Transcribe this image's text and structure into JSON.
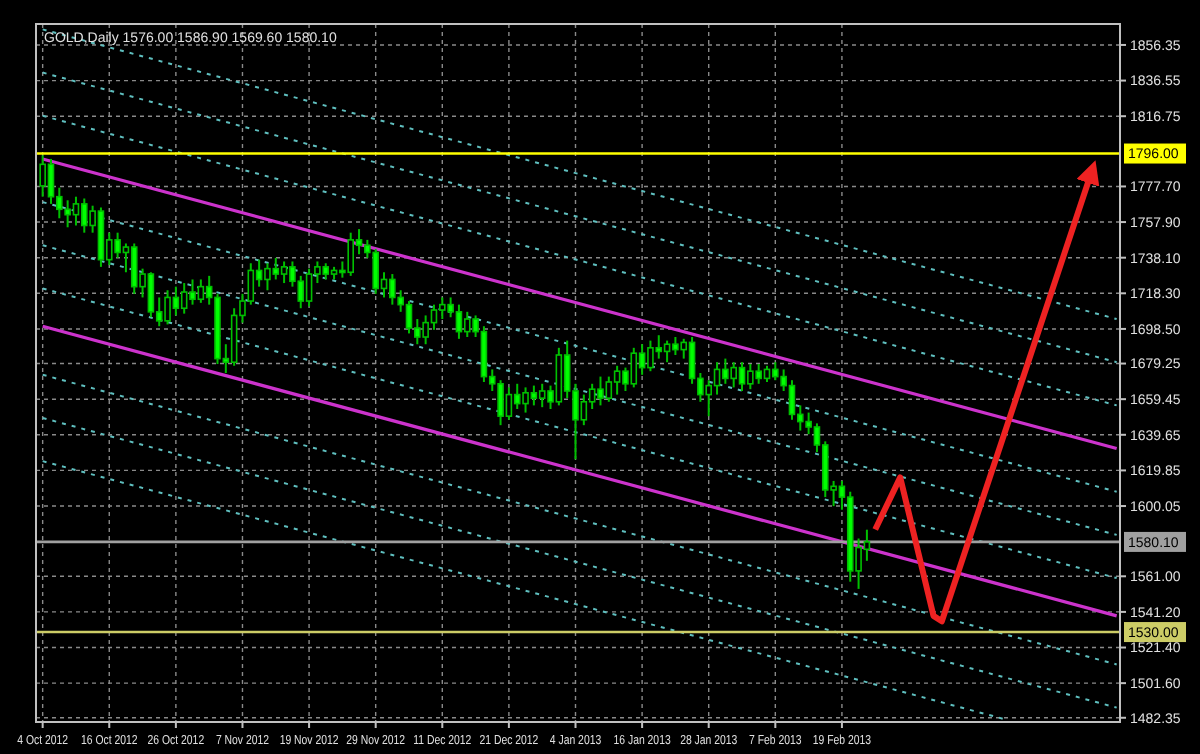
{
  "chart_data": {
    "type": "candlestick",
    "title": "GOLD,Daily  1576.00 1586.90 1569.60 1580.10",
    "color": "#00c000",
    "categories": [
      "4 Oct 2012",
      null,
      null,
      null,
      null,
      null,
      null,
      null,
      "16 Oct 2012",
      null,
      null,
      null,
      null,
      null,
      null,
      null,
      "26 Oct 2012",
      null,
      null,
      null,
      null,
      null,
      null,
      null,
      "7 Nov 2012",
      null,
      null,
      null,
      null,
      null,
      null,
      null,
      "19 Nov 2012",
      null,
      null,
      null,
      null,
      null,
      null,
      null,
      "29 Nov 2012",
      null,
      null,
      null,
      null,
      null,
      null,
      null,
      "11 Dec 2012",
      null,
      null,
      null,
      null,
      null,
      null,
      null,
      "21 Dec 2012",
      null,
      null,
      null,
      null,
      null,
      null,
      null,
      "4 Jan 2013",
      null,
      null,
      null,
      null,
      null,
      null,
      null,
      "16 Jan 2013",
      null,
      null,
      null,
      null,
      null,
      null,
      null,
      "28 Jan 2013",
      null,
      null,
      null,
      null,
      null,
      null,
      null,
      "7 Feb 2013",
      null,
      null,
      null,
      null,
      null,
      null,
      null,
      "19 Feb 2013",
      null,
      null,
      null,
      null,
      null,
      null,
      null,
      null,
      null,
      null,
      null,
      null,
      null,
      null,
      null,
      null,
      null,
      null,
      null,
      null,
      null,
      null,
      null,
      null,
      null,
      null,
      null,
      null,
      null,
      null,
      null,
      null,
      null
    ],
    "ohlc": [
      [
        1778,
        1795,
        1772,
        1790
      ],
      [
        1790,
        1793,
        1768,
        1772
      ],
      [
        1772,
        1777,
        1760,
        1765
      ],
      [
        1765,
        1770,
        1755,
        1762
      ],
      [
        1762,
        1772,
        1756,
        1768
      ],
      [
        1768,
        1771,
        1752,
        1756
      ],
      [
        1756,
        1767,
        1752,
        1764
      ],
      [
        1764,
        1766,
        1733,
        1737
      ],
      [
        1737,
        1752,
        1734,
        1748
      ],
      [
        1748,
        1752,
        1738,
        1741
      ],
      [
        1741,
        1746,
        1730,
        1744
      ],
      [
        1744,
        1746,
        1718,
        1722
      ],
      [
        1722,
        1732,
        1716,
        1729
      ],
      [
        1729,
        1730,
        1705,
        1708
      ],
      [
        1708,
        1716,
        1700,
        1703
      ],
      [
        1703,
        1720,
        1701,
        1716
      ],
      [
        1716,
        1722,
        1706,
        1710
      ],
      [
        1710,
        1724,
        1707,
        1719
      ],
      [
        1719,
        1726,
        1712,
        1715
      ],
      [
        1715,
        1726,
        1713,
        1722
      ],
      [
        1722,
        1728,
        1712,
        1716
      ],
      [
        1716,
        1718,
        1679,
        1682
      ],
      [
        1682,
        1690,
        1674,
        1680
      ],
      [
        1680,
        1710,
        1678,
        1706
      ],
      [
        1706,
        1718,
        1702,
        1714
      ],
      [
        1714,
        1735,
        1712,
        1731
      ],
      [
        1731,
        1737,
        1722,
        1726
      ],
      [
        1726,
        1735,
        1720,
        1732
      ],
      [
        1732,
        1738,
        1726,
        1729
      ],
      [
        1729,
        1736,
        1724,
        1733
      ],
      [
        1733,
        1736,
        1722,
        1725
      ],
      [
        1725,
        1728,
        1710,
        1714
      ],
      [
        1714,
        1732,
        1711,
        1729
      ],
      [
        1729,
        1736,
        1724,
        1733
      ],
      [
        1733,
        1735,
        1726,
        1729
      ],
      [
        1729,
        1733,
        1726,
        1731
      ],
      [
        1731,
        1736,
        1727,
        1730
      ],
      [
        1730,
        1752,
        1728,
        1748
      ],
      [
        1748,
        1754,
        1740,
        1745
      ],
      [
        1745,
        1748,
        1738,
        1741
      ],
      [
        1741,
        1743,
        1718,
        1721
      ],
      [
        1721,
        1730,
        1716,
        1726
      ],
      [
        1726,
        1729,
        1712,
        1716
      ],
      [
        1716,
        1720,
        1708,
        1712
      ],
      [
        1712,
        1714,
        1696,
        1699
      ],
      [
        1699,
        1704,
        1690,
        1694
      ],
      [
        1694,
        1706,
        1690,
        1702
      ],
      [
        1702,
        1712,
        1698,
        1709
      ],
      [
        1709,
        1716,
        1704,
        1712
      ],
      [
        1712,
        1716,
        1705,
        1708
      ],
      [
        1708,
        1712,
        1693,
        1697
      ],
      [
        1697,
        1708,
        1694,
        1704
      ],
      [
        1704,
        1706,
        1694,
        1697
      ],
      [
        1697,
        1700,
        1669,
        1672
      ],
      [
        1672,
        1676,
        1664,
        1668
      ],
      [
        1668,
        1670,
        1645,
        1650
      ],
      [
        1650,
        1666,
        1648,
        1662
      ],
      [
        1662,
        1668,
        1654,
        1657
      ],
      [
        1657,
        1666,
        1652,
        1663
      ],
      [
        1663,
        1667,
        1656,
        1660
      ],
      [
        1660,
        1668,
        1655,
        1664
      ],
      [
        1664,
        1667,
        1654,
        1658
      ],
      [
        1658,
        1688,
        1656,
        1684
      ],
      [
        1684,
        1692,
        1660,
        1664
      ],
      [
        1664,
        1668,
        1626,
        1648
      ],
      [
        1648,
        1662,
        1645,
        1658
      ],
      [
        1658,
        1668,
        1654,
        1665
      ],
      [
        1665,
        1672,
        1656,
        1660
      ],
      [
        1660,
        1672,
        1658,
        1669
      ],
      [
        1669,
        1678,
        1662,
        1675
      ],
      [
        1675,
        1677,
        1664,
        1668
      ],
      [
        1668,
        1688,
        1666,
        1685
      ],
      [
        1685,
        1690,
        1673,
        1677
      ],
      [
        1677,
        1692,
        1675,
        1688
      ],
      [
        1688,
        1695,
        1682,
        1686
      ],
      [
        1686,
        1692,
        1680,
        1690
      ],
      [
        1690,
        1694,
        1684,
        1687
      ],
      [
        1687,
        1693,
        1682,
        1691
      ],
      [
        1691,
        1694,
        1668,
        1671
      ],
      [
        1671,
        1674,
        1658,
        1662
      ],
      [
        1662,
        1670,
        1650,
        1667
      ],
      [
        1667,
        1680,
        1662,
        1676
      ],
      [
        1676,
        1682,
        1668,
        1671
      ],
      [
        1671,
        1680,
        1666,
        1677
      ],
      [
        1677,
        1680,
        1664,
        1668
      ],
      [
        1668,
        1679,
        1665,
        1675
      ],
      [
        1675,
        1679,
        1668,
        1671
      ],
      [
        1671,
        1678,
        1669,
        1676
      ],
      [
        1676,
        1680,
        1670,
        1672
      ],
      [
        1672,
        1676,
        1664,
        1667
      ],
      [
        1667,
        1670,
        1648,
        1651
      ],
      [
        1651,
        1656,
        1642,
        1647
      ],
      [
        1647,
        1652,
        1640,
        1644
      ],
      [
        1644,
        1646,
        1630,
        1634
      ],
      [
        1634,
        1636,
        1605,
        1609
      ],
      [
        1609,
        1614,
        1600,
        1611
      ],
      [
        1611,
        1614,
        1598,
        1605
      ],
      [
        1605,
        1608,
        1558,
        1564
      ],
      [
        1564,
        1582,
        1554,
        1577
      ],
      [
        1576,
        1586.9,
        1569.6,
        1580.1
      ],
      null,
      null,
      null,
      null,
      null,
      null,
      null,
      null,
      null,
      null,
      null,
      null,
      null,
      null,
      null,
      null,
      null,
      null,
      null,
      null,
      null,
      null,
      null,
      null,
      null,
      null,
      null,
      null,
      null,
      null
    ],
    "series": [
      {
        "type": "line",
        "color": "#cc33cc",
        "line_style": "solid",
        "values": [
          1793,
          null,
          null,
          null,
          null,
          null,
          null,
          null,
          null,
          null,
          null,
          null,
          null,
          null,
          null,
          null,
          null,
          null,
          null,
          null,
          null,
          null,
          null,
          null,
          null,
          null,
          null,
          null,
          null,
          null,
          null,
          null,
          null,
          null,
          null,
          null,
          null,
          null,
          null,
          null,
          null,
          null,
          null,
          null,
          null,
          null,
          null,
          null,
          null,
          null,
          null,
          null,
          null,
          null,
          null,
          null,
          null,
          null,
          null,
          null,
          null,
          null,
          null,
          null,
          null,
          null,
          null,
          null,
          null,
          null,
          null,
          null,
          null,
          null,
          null,
          null,
          null,
          null,
          null,
          null,
          null,
          null,
          null,
          null,
          null,
          null,
          null,
          null,
          null,
          null,
          null,
          null,
          null,
          null,
          null,
          null,
          null,
          null,
          null,
          null,
          null,
          null,
          null,
          null,
          null,
          null,
          null,
          null,
          null,
          null,
          null,
          null,
          null,
          null,
          null,
          null,
          null,
          null,
          null,
          null,
          null,
          null,
          null,
          null,
          null,
          null,
          null,
          null,
          null,
          1632
        ]
      },
      {
        "type": "line",
        "color": "#cc33cc",
        "line_style": "solid",
        "values": [
          1700,
          null,
          null,
          null,
          null,
          null,
          null,
          null,
          null,
          null,
          null,
          null,
          null,
          null,
          null,
          null,
          null,
          null,
          null,
          null,
          null,
          null,
          null,
          null,
          null,
          null,
          null,
          null,
          null,
          null,
          null,
          null,
          null,
          null,
          null,
          null,
          null,
          null,
          null,
          null,
          null,
          null,
          null,
          null,
          null,
          null,
          null,
          null,
          null,
          null,
          null,
          null,
          null,
          null,
          null,
          null,
          null,
          null,
          null,
          null,
          null,
          null,
          null,
          null,
          null,
          null,
          null,
          null,
          null,
          null,
          null,
          null,
          null,
          null,
          null,
          null,
          null,
          null,
          null,
          null,
          null,
          null,
          null,
          null,
          null,
          null,
          null,
          null,
          null,
          null,
          null,
          null,
          null,
          null,
          null,
          null,
          null,
          null,
          null,
          null,
          null,
          null,
          null,
          null,
          null,
          null,
          null,
          null,
          null,
          null,
          null,
          null,
          null,
          null,
          null,
          null,
          null,
          null,
          null,
          null,
          null,
          null,
          null,
          null,
          null,
          null,
          null,
          null,
          null,
          1539
        ]
      },
      {
        "type": "line",
        "color": "#5fbfbf",
        "line_style": "dotted",
        "values": [
          1625,
          null,
          null,
          null,
          null,
          null,
          null,
          null,
          null,
          null,
          null,
          null,
          null,
          null,
          null,
          null,
          null,
          null,
          null,
          null,
          null,
          null,
          null,
          null,
          null,
          null,
          null,
          null,
          null,
          null,
          null,
          null,
          null,
          null,
          null,
          null,
          null,
          null,
          null,
          null,
          null,
          null,
          null,
          null,
          null,
          null,
          null,
          null,
          null,
          null,
          null,
          null,
          null,
          null,
          null,
          null,
          null,
          null,
          null,
          null,
          null,
          null,
          null,
          null,
          null,
          null,
          null,
          null,
          null,
          null,
          null,
          null,
          null,
          null,
          null,
          null,
          null,
          null,
          null,
          null,
          null,
          null,
          null,
          null,
          null,
          null,
          null,
          null,
          null,
          null,
          null,
          null,
          null,
          null,
          null,
          null,
          null,
          null,
          null,
          null,
          null,
          null,
          null,
          null,
          null,
          null,
          null,
          null,
          null,
          null,
          null,
          null,
          null,
          null,
          null,
          null,
          1481,
          null,
          null,
          null,
          null,
          null,
          null,
          null,
          null,
          null,
          null,
          null,
          null,
          null
        ]
      },
      {
        "type": "line",
        "color": "#5fbfbf",
        "line_style": "dotted",
        "values": [
          1649,
          null,
          null,
          null,
          null,
          null,
          null,
          null,
          null,
          null,
          null,
          null,
          null,
          null,
          null,
          null,
          null,
          null,
          null,
          null,
          null,
          null,
          null,
          null,
          null,
          null,
          null,
          null,
          null,
          null,
          null,
          null,
          null,
          null,
          null,
          null,
          null,
          null,
          null,
          null,
          null,
          null,
          null,
          null,
          null,
          null,
          null,
          null,
          null,
          null,
          null,
          null,
          null,
          null,
          null,
          null,
          null,
          null,
          null,
          null,
          null,
          null,
          null,
          null,
          null,
          null,
          null,
          null,
          null,
          null,
          null,
          null,
          null,
          null,
          null,
          null,
          null,
          null,
          null,
          null,
          null,
          null,
          null,
          null,
          null,
          null,
          null,
          null,
          null,
          null,
          null,
          null,
          null,
          null,
          null,
          null,
          null,
          null,
          null,
          null,
          null,
          null,
          null,
          null,
          null,
          null,
          null,
          null,
          null,
          null,
          null,
          null,
          null,
          null,
          null,
          null,
          null,
          null,
          null,
          null,
          null,
          null,
          null,
          null,
          null,
          null,
          null,
          null,
          null,
          1488
        ]
      },
      {
        "type": "line",
        "color": "#5fbfbf",
        "line_style": "dotted",
        "values": [
          1673,
          null,
          null,
          null,
          null,
          null,
          null,
          null,
          null,
          null,
          null,
          null,
          null,
          null,
          null,
          null,
          null,
          null,
          null,
          null,
          null,
          null,
          null,
          null,
          null,
          null,
          null,
          null,
          null,
          null,
          null,
          null,
          null,
          null,
          null,
          null,
          null,
          null,
          null,
          null,
          null,
          null,
          null,
          null,
          null,
          null,
          null,
          null,
          null,
          null,
          null,
          null,
          null,
          null,
          null,
          null,
          null,
          null,
          null,
          null,
          null,
          null,
          null,
          null,
          null,
          null,
          null,
          null,
          null,
          null,
          null,
          null,
          null,
          null,
          null,
          null,
          null,
          null,
          null,
          null,
          null,
          null,
          null,
          null,
          null,
          null,
          null,
          null,
          null,
          null,
          null,
          null,
          null,
          null,
          null,
          null,
          null,
          null,
          null,
          null,
          null,
          null,
          null,
          null,
          null,
          null,
          null,
          null,
          null,
          null,
          null,
          null,
          null,
          null,
          null,
          null,
          null,
          null,
          null,
          null,
          null,
          null,
          null,
          null,
          null,
          null,
          null,
          null,
          null,
          1512
        ]
      },
      {
        "type": "line",
        "color": "#5fbfbf",
        "line_style": "dotted",
        "values": [
          1721,
          null,
          null,
          null,
          null,
          null,
          null,
          null,
          null,
          null,
          null,
          null,
          null,
          null,
          null,
          null,
          null,
          null,
          null,
          null,
          null,
          null,
          null,
          null,
          null,
          null,
          null,
          null,
          null,
          null,
          null,
          null,
          null,
          null,
          null,
          null,
          null,
          null,
          null,
          null,
          null,
          null,
          null,
          null,
          null,
          null,
          null,
          null,
          null,
          null,
          null,
          null,
          null,
          null,
          null,
          null,
          null,
          null,
          null,
          null,
          null,
          null,
          null,
          null,
          null,
          null,
          null,
          null,
          null,
          null,
          null,
          null,
          null,
          null,
          null,
          null,
          null,
          null,
          null,
          null,
          null,
          null,
          null,
          null,
          null,
          null,
          null,
          null,
          null,
          null,
          null,
          null,
          null,
          null,
          null,
          null,
          null,
          null,
          null,
          null,
          null,
          null,
          null,
          null,
          null,
          null,
          null,
          null,
          null,
          null,
          null,
          null,
          null,
          null,
          null,
          null,
          null,
          null,
          null,
          null,
          null,
          null,
          null,
          null,
          null,
          null,
          null,
          null,
          null,
          1560
        ]
      },
      {
        "type": "line",
        "color": "#5fbfbf",
        "line_style": "dotted",
        "values": [
          1745,
          null,
          null,
          null,
          null,
          null,
          null,
          null,
          null,
          null,
          null,
          null,
          null,
          null,
          null,
          null,
          null,
          null,
          null,
          null,
          null,
          null,
          null,
          null,
          null,
          null,
          null,
          null,
          null,
          null,
          null,
          null,
          null,
          null,
          null,
          null,
          null,
          null,
          null,
          null,
          null,
          null,
          null,
          null,
          null,
          null,
          null,
          null,
          null,
          null,
          null,
          null,
          null,
          null,
          null,
          null,
          null,
          null,
          null,
          null,
          null,
          null,
          null,
          null,
          null,
          null,
          null,
          null,
          null,
          null,
          null,
          null,
          null,
          null,
          null,
          null,
          null,
          null,
          null,
          null,
          null,
          null,
          null,
          null,
          null,
          null,
          null,
          null,
          null,
          null,
          null,
          null,
          null,
          null,
          null,
          null,
          null,
          null,
          null,
          null,
          null,
          null,
          null,
          null,
          null,
          null,
          null,
          null,
          null,
          null,
          null,
          null,
          null,
          null,
          null,
          null,
          null,
          null,
          null,
          null,
          null,
          null,
          null,
          null,
          null,
          null,
          null,
          null,
          null,
          1584
        ]
      },
      {
        "type": "line",
        "color": "#5fbfbf",
        "line_style": "dotted",
        "values": [
          1769,
          null,
          null,
          null,
          null,
          null,
          null,
          null,
          null,
          null,
          null,
          null,
          null,
          null,
          null,
          null,
          null,
          null,
          null,
          null,
          null,
          null,
          null,
          null,
          null,
          null,
          null,
          null,
          null,
          null,
          null,
          null,
          null,
          null,
          null,
          null,
          null,
          null,
          null,
          null,
          null,
          null,
          null,
          null,
          null,
          null,
          null,
          null,
          null,
          null,
          null,
          null,
          null,
          null,
          null,
          null,
          null,
          null,
          null,
          null,
          null,
          null,
          null,
          null,
          null,
          null,
          null,
          null,
          null,
          null,
          null,
          null,
          null,
          null,
          null,
          null,
          null,
          null,
          null,
          null,
          null,
          null,
          null,
          null,
          null,
          null,
          null,
          null,
          null,
          null,
          null,
          null,
          null,
          null,
          null,
          null,
          null,
          null,
          null,
          null,
          null,
          null,
          null,
          null,
          null,
          null,
          null,
          null,
          null,
          null,
          null,
          null,
          null,
          null,
          null,
          null,
          null,
          null,
          null,
          null,
          null,
          null,
          null,
          null,
          null,
          null,
          null,
          null,
          null,
          1608
        ]
      },
      {
        "type": "line",
        "color": "#5fbfbf",
        "line_style": "dotted",
        "values": [
          1817,
          null,
          null,
          null,
          null,
          null,
          null,
          null,
          null,
          null,
          null,
          null,
          null,
          null,
          null,
          null,
          null,
          null,
          null,
          null,
          null,
          null,
          null,
          null,
          null,
          null,
          null,
          null,
          null,
          null,
          null,
          null,
          null,
          null,
          null,
          null,
          null,
          null,
          null,
          null,
          null,
          null,
          null,
          null,
          null,
          null,
          null,
          null,
          null,
          null,
          null,
          null,
          null,
          null,
          null,
          null,
          null,
          null,
          null,
          null,
          null,
          null,
          null,
          null,
          null,
          null,
          null,
          null,
          null,
          null,
          null,
          null,
          null,
          null,
          null,
          null,
          null,
          null,
          null,
          null,
          null,
          null,
          null,
          null,
          null,
          null,
          null,
          null,
          null,
          null,
          null,
          null,
          null,
          null,
          null,
          null,
          null,
          null,
          null,
          null,
          null,
          null,
          null,
          null,
          null,
          null,
          null,
          null,
          null,
          null,
          null,
          null,
          null,
          null,
          null,
          null,
          null,
          null,
          null,
          null,
          null,
          null,
          null,
          null,
          null,
          null,
          null,
          null,
          null,
          1656
        ]
      },
      {
        "type": "line",
        "color": "#5fbfbf",
        "line_style": "dotted",
        "values": [
          1841,
          null,
          null,
          null,
          null,
          null,
          null,
          null,
          null,
          null,
          null,
          null,
          null,
          null,
          null,
          null,
          null,
          null,
          null,
          null,
          null,
          null,
          null,
          null,
          null,
          null,
          null,
          null,
          null,
          null,
          null,
          null,
          null,
          null,
          null,
          null,
          null,
          null,
          null,
          null,
          null,
          null,
          null,
          null,
          null,
          null,
          null,
          null,
          null,
          null,
          null,
          null,
          null,
          null,
          null,
          null,
          null,
          null,
          null,
          null,
          null,
          null,
          null,
          null,
          null,
          null,
          null,
          null,
          null,
          null,
          null,
          null,
          null,
          null,
          null,
          null,
          null,
          null,
          null,
          null,
          null,
          null,
          null,
          null,
          null,
          null,
          null,
          null,
          null,
          null,
          null,
          null,
          null,
          null,
          null,
          null,
          null,
          null,
          null,
          null,
          null,
          null,
          null,
          null,
          null,
          null,
          null,
          null,
          null,
          null,
          null,
          null,
          null,
          null,
          null,
          null,
          null,
          null,
          null,
          null,
          null,
          null,
          null,
          null,
          null,
          null,
          null,
          null,
          null,
          1680
        ]
      },
      {
        "type": "line",
        "color": "#5fbfbf",
        "line_style": "dotted",
        "values": [
          1865,
          null,
          null,
          null,
          null,
          null,
          null,
          null,
          null,
          null,
          null,
          null,
          null,
          null,
          null,
          null,
          null,
          null,
          null,
          null,
          null,
          null,
          null,
          null,
          null,
          null,
          null,
          null,
          null,
          null,
          null,
          null,
          null,
          null,
          null,
          null,
          null,
          null,
          null,
          null,
          null,
          null,
          null,
          null,
          null,
          null,
          null,
          null,
          null,
          null,
          null,
          null,
          null,
          null,
          null,
          null,
          null,
          null,
          null,
          null,
          null,
          null,
          null,
          null,
          null,
          null,
          null,
          null,
          null,
          null,
          null,
          null,
          null,
          null,
          null,
          null,
          null,
          null,
          null,
          null,
          null,
          null,
          null,
          null,
          null,
          null,
          null,
          null,
          null,
          null,
          null,
          null,
          null,
          null,
          null,
          null,
          null,
          null,
          null,
          null,
          null,
          null,
          null,
          null,
          null,
          null,
          null,
          null,
          null,
          null,
          null,
          null,
          null,
          null,
          null,
          null,
          null,
          null,
          null,
          null,
          null,
          null,
          null,
          null,
          null,
          null,
          null,
          null,
          null,
          1704
        ]
      },
      {
        "type": "line",
        "color": "#ee2222",
        "line_style": "solid",
        "values": [
          null,
          null,
          null,
          null,
          null,
          null,
          null,
          null,
          null,
          null,
          null,
          null,
          null,
          null,
          null,
          null,
          null,
          null,
          null,
          null,
          null,
          null,
          null,
          null,
          null,
          null,
          null,
          null,
          null,
          null,
          null,
          null,
          null,
          null,
          null,
          null,
          null,
          null,
          null,
          null,
          null,
          null,
          null,
          null,
          null,
          null,
          null,
          null,
          null,
          null,
          null,
          null,
          null,
          null,
          null,
          null,
          null,
          null,
          null,
          null,
          null,
          null,
          null,
          null,
          null,
          null,
          null,
          null,
          null,
          null,
          null,
          null,
          null,
          null,
          null,
          null,
          null,
          null,
          null,
          null,
          null,
          null,
          null,
          null,
          null,
          null,
          null,
          null,
          null,
          null,
          null,
          null,
          null,
          null,
          null,
          null,
          null,
          null,
          null,
          null,
          1587,
          null,
          null,
          1616,
          null,
          null,
          null,
          1539,
          1536,
          null,
          null,
          null,
          null,
          null,
          null,
          null,
          null,
          null,
          null,
          null,
          null,
          null,
          null,
          null,
          null,
          null,
          1786,
          null,
          null,
          null
        ]
      }
    ],
    "ref_lines": [
      {
        "axis": "y",
        "value": 1796,
        "label": "1796.00",
        "color": "#ffff00"
      },
      {
        "axis": "y",
        "value": 1530,
        "label": "1530.00",
        "color": "#cccc66"
      },
      {
        "axis": "y",
        "value": 1580.1,
        "label": "1580.10",
        "color": "#a0a0a0"
      }
    ],
    "ylim": [
      1480,
      1868
    ],
    "yticks": [
      1856.35,
      1836.55,
      1816.75,
      {
        "value": 1777.7,
        "label": "1777.70"
      },
      {
        "value": 1757.9,
        "label": "1757.90"
      },
      {
        "value": 1738.1,
        "label": "1738.10"
      },
      {
        "value": 1718.3,
        "label": "1718.30"
      },
      {
        "value": 1698.5,
        "label": "1698.50"
      },
      1679.25,
      1659.45,
      1639.65,
      1619.85,
      1600.05,
      {
        "value": 1561,
        "label": "1561.00"
      },
      {
        "value": 1541.2,
        "label": "1541.20"
      },
      {
        "value": 1521.4,
        "label": "1521.40"
      },
      {
        "value": 1501.6,
        "label": "1501.60"
      },
      1482.35
    ],
    "grid": true
  }
}
